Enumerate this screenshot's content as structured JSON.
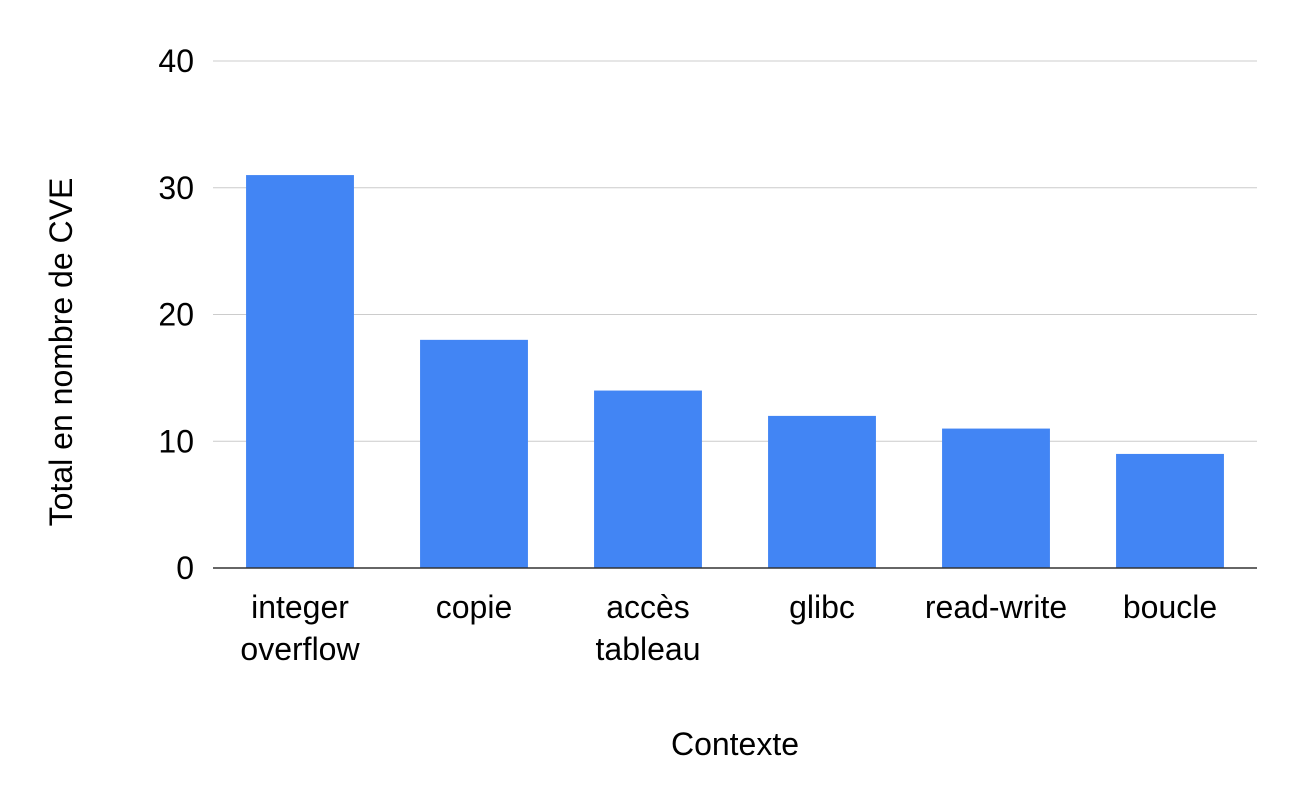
{
  "chart_data": {
    "type": "bar",
    "title": "",
    "xlabel": "Contexte",
    "ylabel": "Total en nombre de CVE",
    "categories": [
      [
        "integer",
        "overflow"
      ],
      [
        "copie"
      ],
      [
        "accès",
        "tableau"
      ],
      [
        "glibc"
      ],
      [
        "read-write"
      ],
      [
        "boucle"
      ]
    ],
    "values": [
      31,
      18,
      14,
      12,
      11,
      9
    ],
    "ylim": [
      0,
      40
    ],
    "yticks": [
      0,
      10,
      20,
      30,
      40
    ],
    "grid": true,
    "legend": "none",
    "colors": {
      "bar": "#4285f4",
      "grid": "#cccccc",
      "baseline": "#333333"
    }
  }
}
